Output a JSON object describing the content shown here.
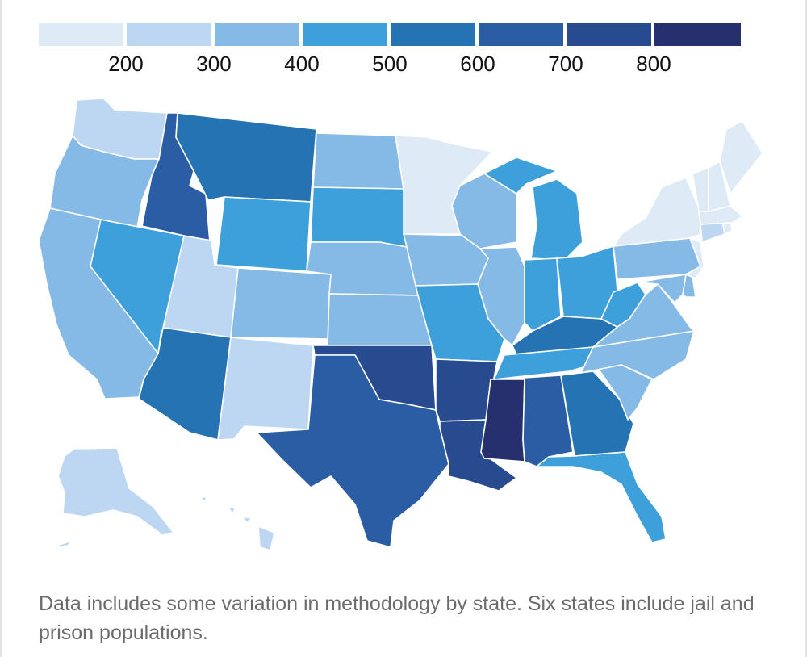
{
  "legend": {
    "colors": [
      "#deebf7",
      "#bdd7f3",
      "#85b9e6",
      "#3ea0da",
      "#2673b3",
      "#2a5da3",
      "#284a8e",
      "#27306e"
    ],
    "ticks": [
      "200",
      "300",
      "400",
      "500",
      "600",
      "700",
      "800"
    ]
  },
  "states": {
    "WA": "#bdd7f3",
    "OR": "#85b9e6",
    "CA": "#85b9e6",
    "NV": "#3ea0da",
    "ID": "#2a5da3",
    "MT": "#2673b3",
    "WY": "#3ea0da",
    "UT": "#bdd7f3",
    "AZ": "#2673b3",
    "CO": "#85b9e6",
    "NM": "#bdd7f3",
    "ND": "#85b9e6",
    "SD": "#3ea0da",
    "NE": "#85b9e6",
    "KS": "#85b9e6",
    "OK": "#284a8e",
    "TX": "#2a5da3",
    "MN": "#deebf7",
    "IA": "#85b9e6",
    "MO": "#3ea0da",
    "AR": "#284a8e",
    "LA": "#284a8e",
    "WI": "#85b9e6",
    "IL": "#85b9e6",
    "MS": "#27306e",
    "MI": "#3ea0da",
    "IN": "#3ea0da",
    "KY": "#2673b3",
    "TN": "#3ea0da",
    "AL": "#2a5da3",
    "OH": "#3ea0da",
    "WV": "#3ea0da",
    "GA": "#2673b3",
    "FL": "#3ea0da",
    "SC": "#85b9e6",
    "NC": "#85b9e6",
    "VA": "#85b9e6",
    "PA": "#85b9e6",
    "NY": "#deebf7",
    "MD": "#85b9e6",
    "DE": "#85b9e6",
    "NJ": "#deebf7",
    "CT": "#bdd7f3",
    "RI": "#deebf7",
    "MA": "#deebf7",
    "VT": "#deebf7",
    "NH": "#deebf7",
    "ME": "#deebf7",
    "AK": "#bdd7f3",
    "HI": "#bdd7f3"
  },
  "note": "Data includes some variation in methodology by state. Six states include jail and prison populations."
}
